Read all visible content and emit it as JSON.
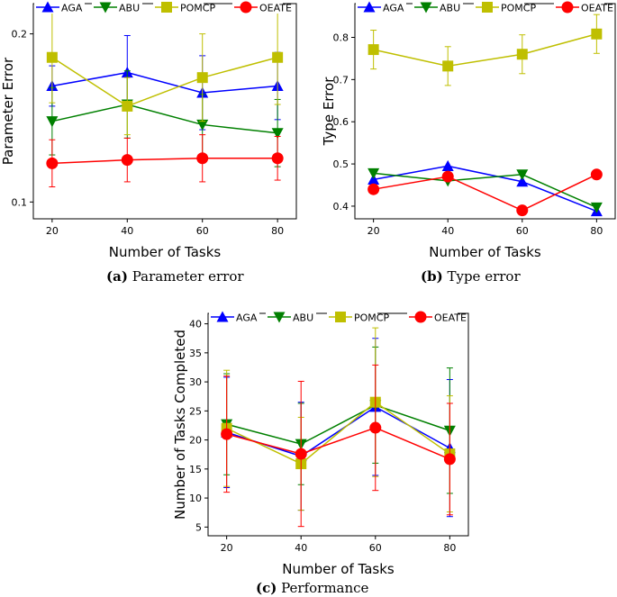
{
  "chart_data": [
    {
      "type": "line",
      "id": "a",
      "caption_label": "(a)",
      "caption_text": "Parameter error",
      "xlabel": "Number of Tasks",
      "ylabel": "Parameter Error",
      "categories": [
        20,
        40,
        60,
        80
      ],
      "xlim": [
        15,
        85
      ],
      "ylim": [
        0.09,
        0.218
      ],
      "yticks": [
        0.1,
        0.2
      ],
      "ytick_labels": [
        "0.1",
        "0.2"
      ],
      "legend_position": "top",
      "series": [
        {
          "name": "AGA",
          "values": [
            0.169,
            0.177,
            0.165,
            0.169
          ],
          "err": [
            0.012,
            0.022,
            0.022,
            0.02
          ]
        },
        {
          "name": "ABU",
          "values": [
            0.148,
            0.158,
            0.146,
            0.141
          ],
          "err": [
            0.02,
            0.02,
            0.018,
            0.02
          ]
        },
        {
          "name": "POMCP",
          "values": [
            0.186,
            0.157,
            0.174,
            0.186
          ],
          "err": [
            0.027,
            0.017,
            0.026,
            0.028
          ]
        },
        {
          "name": "OEATE",
          "values": [
            0.123,
            0.125,
            0.126,
            0.126
          ],
          "err": [
            0.014,
            0.013,
            0.014,
            0.013
          ]
        }
      ]
    },
    {
      "type": "line",
      "id": "b",
      "caption_label": "(b)",
      "caption_text": "Type error",
      "xlabel": "Number of Tasks",
      "ylabel": "Type Error",
      "categories": [
        20,
        40,
        60,
        80
      ],
      "xlim": [
        15,
        85
      ],
      "ylim": [
        0.37,
        0.88
      ],
      "yticks": [
        0.4,
        0.5,
        0.6,
        0.7,
        0.8
      ],
      "ytick_labels": [
        "0.4",
        "0.5",
        "0.6",
        "0.7",
        "0.8"
      ],
      "legend_position": "top",
      "series": [
        {
          "name": "AGA",
          "values": [
            0.463,
            0.495,
            0.458,
            0.388
          ],
          "err": [
            0,
            0,
            0,
            0
          ]
        },
        {
          "name": "ABU",
          "values": [
            0.478,
            0.46,
            0.475,
            0.397
          ],
          "err": [
            0,
            0,
            0,
            0
          ]
        },
        {
          "name": "POMCP",
          "values": [
            0.771,
            0.732,
            0.76,
            0.808
          ],
          "err": [
            0.046,
            0.046,
            0.046,
            0.046
          ]
        },
        {
          "name": "OEATE",
          "values": [
            0.44,
            0.47,
            0.39,
            0.475
          ],
          "err": [
            0,
            0,
            0,
            0
          ]
        }
      ]
    },
    {
      "type": "line",
      "id": "c",
      "caption_label": "(c)",
      "caption_text": "Performance",
      "xlabel": "Number of Tasks",
      "ylabel": "Number of Tasks Completed",
      "categories": [
        20,
        40,
        60,
        80
      ],
      "xlim": [
        15,
        85
      ],
      "ylim": [
        3.5,
        41.8
      ],
      "yticks": [
        5,
        10,
        15,
        20,
        25,
        30,
        35,
        40
      ],
      "ytick_labels": [
        "5",
        "10",
        "15",
        "20",
        "25",
        "30",
        "35",
        "40"
      ],
      "legend_position": "top",
      "series": [
        {
          "name": "AGA",
          "values": [
            21.3,
            17.2,
            25.7,
            18.6
          ],
          "err": [
            9.5,
            9.3,
            11.8,
            11.8
          ]
        },
        {
          "name": "ABU",
          "values": [
            22.7,
            19.3,
            26.0,
            21.6
          ],
          "err": [
            8.7,
            7.0,
            10.0,
            10.8
          ]
        },
        {
          "name": "POMCP",
          "values": [
            22.0,
            15.9,
            26.5,
            17.6
          ],
          "err": [
            10.0,
            8.0,
            12.8,
            10.0
          ]
        },
        {
          "name": "OEATE",
          "values": [
            21.0,
            17.6,
            22.1,
            16.7
          ],
          "err": [
            10.0,
            12.5,
            10.8,
            9.6
          ]
        }
      ]
    }
  ],
  "series_colors": {
    "AGA": "#0000ff",
    "ABU": "#008000",
    "POMCP": "#bfbf00",
    "OEATE": "#ff0000"
  },
  "series_markers": {
    "AGA": "triangle-up",
    "ABU": "triangle-down",
    "POMCP": "square",
    "OEATE": "circle"
  }
}
